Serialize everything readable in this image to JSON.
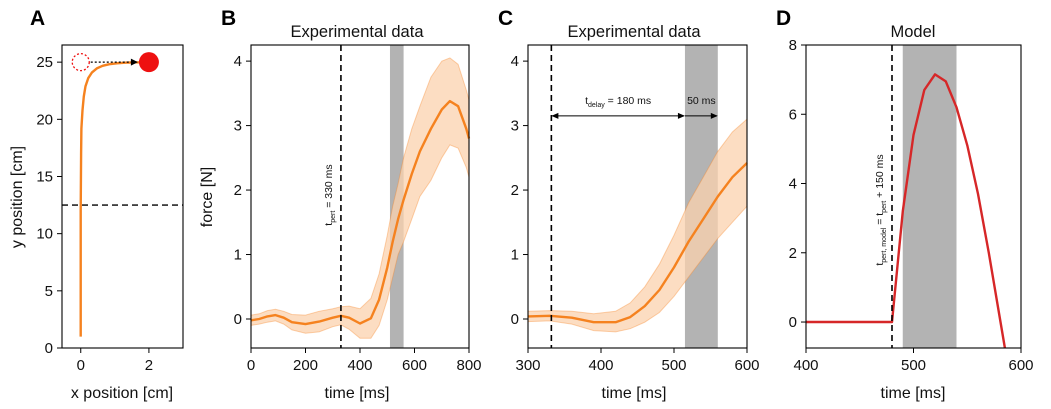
{
  "colors": {
    "orange": "#F5821F",
    "orange_band": "#FBD1AE",
    "red": "#D62728",
    "marker_red": "#EE1111",
    "shade_gray": "#9A9A9A"
  },
  "chart_data": [
    {
      "panel": "A",
      "type": "line",
      "title": "",
      "xlabel": "x position [cm]",
      "ylabel": "y position [cm]",
      "xlim": [
        -0.55,
        3.0
      ],
      "ylim": [
        0,
        26.5
      ],
      "xticks": [
        0,
        2
      ],
      "yticks": [
        0,
        5,
        10,
        15,
        20,
        25
      ],
      "trajectory": {
        "x": [
          0,
          0,
          0.01,
          0.02,
          0.05,
          0.09,
          0.14,
          0.22,
          0.33,
          0.47,
          0.64,
          0.84,
          1.06,
          1.3,
          1.55,
          1.8,
          2.0
        ],
        "y": [
          1,
          12,
          17,
          19.2,
          20.8,
          22,
          22.9,
          23.6,
          24.1,
          24.45,
          24.68,
          24.82,
          24.9,
          24.95,
          24.98,
          24.99,
          25
        ]
      },
      "start_marker": {
        "x": 0,
        "y": 25,
        "style": "dotted-circle"
      },
      "target_marker": {
        "x": 2,
        "y": 25,
        "style": "filled-circle"
      },
      "horizontal_dashed_line": 12.5
    },
    {
      "panel": "B",
      "type": "line",
      "title": "Experimental data",
      "xlabel": "time [ms]",
      "ylabel": "force [N]",
      "xlim": [
        0,
        800
      ],
      "ylim": [
        -0.45,
        4.25
      ],
      "xticks": [
        0,
        200,
        400,
        600,
        800
      ],
      "yticks": [
        0,
        1,
        2,
        3,
        4
      ],
      "vline": {
        "x": 330,
        "label": "t",
        "label_sub": "pert",
        "label_rest": " = 330 ms"
      },
      "shade": [
        510,
        560
      ],
      "mean": {
        "x": [
          0,
          30,
          60,
          90,
          120,
          150,
          200,
          250,
          300,
          330,
          360,
          400,
          440,
          470,
          500,
          520,
          540,
          560,
          590,
          620,
          660,
          700,
          730,
          760,
          790,
          800
        ],
        "y": [
          -0.02,
          0,
          0.04,
          0.06,
          0.02,
          -0.05,
          -0.08,
          -0.04,
          0.02,
          0.05,
          0.02,
          -0.07,
          0.01,
          0.3,
          0.8,
          1.2,
          1.55,
          1.85,
          2.25,
          2.6,
          2.95,
          3.25,
          3.38,
          3.3,
          2.95,
          2.8
        ]
      },
      "band_upper": [
        0.06,
        0.08,
        0.13,
        0.15,
        0.12,
        0.07,
        0.06,
        0.12,
        0.16,
        0.19,
        0.2,
        0.16,
        0.32,
        0.7,
        1.3,
        1.75,
        2.1,
        2.5,
        2.95,
        3.3,
        3.75,
        4.0,
        4.05,
        3.95,
        3.55,
        3.4
      ],
      "band_lower": [
        -0.1,
        -0.08,
        -0.05,
        -0.03,
        -0.08,
        -0.17,
        -0.22,
        -0.2,
        -0.12,
        -0.09,
        -0.16,
        -0.3,
        -0.3,
        -0.1,
        0.3,
        0.65,
        1.0,
        1.2,
        1.55,
        1.9,
        2.15,
        2.5,
        2.7,
        2.65,
        2.35,
        2.2
      ]
    },
    {
      "panel": "C",
      "type": "line",
      "title": "Experimental data",
      "xlabel": "time [ms]",
      "ylabel": "",
      "xlim": [
        300,
        600
      ],
      "ylim": [
        -0.45,
        4.25
      ],
      "xticks": [
        300,
        400,
        500,
        600
      ],
      "yticks": [
        0,
        1,
        2,
        3,
        4
      ],
      "vline": {
        "x": 332
      },
      "shade": [
        515,
        560
      ],
      "delay_arrow": {
        "from": 332,
        "to": 515,
        "y": 3.15,
        "label": "t",
        "label_sub": "delay",
        "label_rest": " = 180 ms"
      },
      "window_arrow": {
        "from": 515,
        "to": 560,
        "y": 3.15,
        "label": "50 ms"
      },
      "mean": {
        "x": [
          300,
          330,
          360,
          390,
          420,
          440,
          460,
          480,
          500,
          520,
          540,
          560,
          580,
          600
        ],
        "y": [
          0.04,
          0.05,
          0.02,
          -0.05,
          -0.05,
          0.03,
          0.2,
          0.45,
          0.8,
          1.2,
          1.55,
          1.9,
          2.2,
          2.42
        ]
      },
      "band_upper": [
        0.12,
        0.13,
        0.12,
        0.08,
        0.12,
        0.25,
        0.5,
        0.85,
        1.3,
        1.8,
        2.2,
        2.6,
        2.9,
        3.1
      ],
      "band_lower": [
        -0.04,
        -0.03,
        -0.08,
        -0.18,
        -0.2,
        -0.15,
        -0.05,
        0.1,
        0.35,
        0.65,
        0.95,
        1.25,
        1.5,
        1.75
      ]
    },
    {
      "panel": "D",
      "type": "line",
      "title": "Model",
      "xlabel": "time [ms]",
      "ylabel": "",
      "xlim": [
        400,
        600
      ],
      "ylim": [
        -0.75,
        8
      ],
      "xticks": [
        400,
        500,
        600
      ],
      "yticks": [
        0,
        2,
        4,
        6,
        8
      ],
      "vline": {
        "x": 480,
        "label": "t",
        "label_sub": "pert, model",
        "label_mid": " = t",
        "label_sub2": "pert",
        "label_rest": " + 150 ms"
      },
      "shade": [
        490,
        540
      ],
      "x": [
        400,
        480,
        490,
        500,
        510,
        520,
        530,
        540,
        550,
        560,
        570,
        585
      ],
      "y": [
        0,
        0,
        3.2,
        5.4,
        6.7,
        7.15,
        6.95,
        6.2,
        5.1,
        3.7,
        2.0,
        -0.75
      ]
    }
  ]
}
